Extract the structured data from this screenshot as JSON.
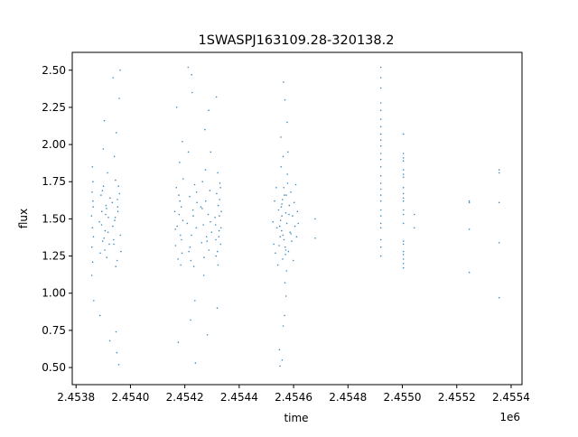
{
  "chart_data": {
    "type": "scatter",
    "title": "1SWASPJ163109.28-320138.2",
    "xlabel": "time",
    "ylabel": "flux",
    "x_offset_label": "1e6",
    "xlim": [
      2453786,
      2455440
    ],
    "ylim": [
      0.385,
      2.62
    ],
    "xticks": [
      2453800,
      2454000,
      2454200,
      2454400,
      2454600,
      2454800,
      2455000,
      2455200,
      2455400
    ],
    "xtick_labels": [
      "2.4538",
      "2.4540",
      "2.4542",
      "2.4544",
      "2.4546",
      "2.4548",
      "2.4550",
      "2.4552",
      "2.4554"
    ],
    "yticks": [
      0.5,
      0.75,
      1.0,
      1.25,
      1.5,
      1.75,
      2.0,
      2.25,
      2.5
    ],
    "ytick_labels": [
      "0.50",
      "0.75",
      "1.00",
      "1.25",
      "1.50",
      "1.75",
      "2.00",
      "2.25",
      "2.50"
    ],
    "grid": false,
    "marker_color": "#1f77b4",
    "series": [
      {
        "x": [
          2453857,
          2453858,
          2453859,
          2453860,
          2453861,
          2453862,
          2453863,
          2453864,
          2453865,
          2453858,
          2453860,
          2453862,
          2453886,
          2453889,
          2453892,
          2453895,
          2453898,
          2453901,
          2453904,
          2453907,
          2453910,
          2453913,
          2453916,
          2453919,
          2453922,
          2453925,
          2453888,
          2453894,
          2453900,
          2453906,
          2453912,
          2453918,
          2453924,
          2453897,
          2453903,
          2453909,
          2453933,
          2453936,
          2453939,
          2453942,
          2453945,
          2453948,
          2453951,
          2453954,
          2453957,
          2453960,
          2453963,
          2453935,
          2453941,
          2453947,
          2453953,
          2453959,
          2453965,
          2453944,
          2453950,
          2453956,
          2453938,
          2453962,
          2453946,
          2453952
        ],
        "y": [
          1.52,
          1.31,
          1.68,
          1.44,
          1.21,
          1.75,
          1.58,
          1.38,
          0.95,
          1.12,
          1.85,
          1.62,
          1.48,
          1.27,
          1.66,
          1.55,
          1.35,
          1.72,
          2.16,
          1.42,
          1.59,
          1.24,
          1.81,
          1.51,
          1.33,
          1.64,
          0.85,
          1.46,
          1.97,
          1.29,
          1.57,
          1.41,
          0.68,
          1.69,
          1.37,
          1.53,
          1.61,
          2.45,
          1.33,
          1.49,
          1.76,
          2.08,
          1.22,
          1.55,
          0.52,
          1.67,
          1.39,
          1.45,
          1.92,
          0.74,
          1.58,
          2.31,
          1.28,
          1.51,
          0.6,
          1.72,
          1.36,
          2.5,
          1.18,
          1.63
        ]
      },
      {
        "x": [
          2454163,
          2454166,
          2454169,
          2454172,
          2454175,
          2454178,
          2454181,
          2454184,
          2454187,
          2454190,
          2454193,
          2454170,
          2454176,
          2454182,
          2454188,
          2454194,
          2454165,
          2454185,
          2454179,
          2454191,
          2454209,
          2454212,
          2454215,
          2454218,
          2454221,
          2454224,
          2454227,
          2454230,
          2454233,
          2454236,
          2454239,
          2454242,
          2454245,
          2454213,
          2454219,
          2454225,
          2454231,
          2454237,
          2454243,
          2454222,
          2454259,
          2454262,
          2454265,
          2454268,
          2454271,
          2454274,
          2454277,
          2454280,
          2454283,
          2454286,
          2454289,
          2454292,
          2454295,
          2454298,
          2454264,
          2454270,
          2454276,
          2454282,
          2454288,
          2454294,
          2454311,
          2454314,
          2454317,
          2454320,
          2454323,
          2454326,
          2454329,
          2454332,
          2454334,
          2454316,
          2454322,
          2454328,
          2454313,
          2454319,
          2454325,
          2454331,
          2454315,
          2454327,
          2454321,
          2454333
        ],
        "y": [
          1.55,
          1.32,
          1.71,
          1.45,
          1.23,
          1.66,
          1.88,
          1.39,
          1.58,
          1.27,
          1.49,
          2.25,
          0.67,
          1.62,
          1.36,
          1.77,
          1.43,
          1.19,
          1.53,
          2.02,
          1.47,
          2.52,
          1.28,
          1.65,
          0.82,
          1.39,
          2.35,
          1.56,
          1.18,
          1.73,
          0.53,
          1.44,
          1.61,
          1.95,
          1.31,
          2.47,
          1.52,
          0.95,
          1.68,
          1.22,
          1.58,
          1.34,
          1.75,
          1.46,
          1.24,
          2.1,
          1.62,
          1.38,
          0.72,
          1.53,
          1.29,
          1.69,
          1.95,
          1.41,
          1.57,
          1.12,
          1.83,
          1.35,
          2.23,
          1.48,
          1.51,
          1.36,
          1.67,
          1.28,
          1.59,
          1.42,
          1.74,
          1.33,
          1.55,
          2.32,
          1.19,
          1.63,
          1.46,
          0.9,
          1.38,
          1.71,
          1.25,
          1.52,
          1.81,
          1.44
        ]
      },
      {
        "x": [
          2454524,
          2454527,
          2454530,
          2454533,
          2454536,
          2454539,
          2454542,
          2454545,
          2454548,
          2454551,
          2454554,
          2454557,
          2454560,
          2454563,
          2454566,
          2454569,
          2454572,
          2454575,
          2454578,
          2454581,
          2454584,
          2454587,
          2454590,
          2454593,
          2454596,
          2454599,
          2454602,
          2454605,
          2454608,
          2454611,
          2454614,
          2454617,
          2454550,
          2454553,
          2454556,
          2454559,
          2454562,
          2454565,
          2454568,
          2454571,
          2454574,
          2454577,
          2454552,
          2454558,
          2454564,
          2454570,
          2454576,
          2454555,
          2454561,
          2454567,
          2454573,
          2454549,
          2454579,
          2454547,
          2454583,
          2454590,
          2454562,
          2454568,
          2454557,
          2454571
        ],
        "y": [
          1.48,
          1.33,
          1.62,
          1.27,
          1.71,
          1.44,
          1.19,
          1.56,
          0.62,
          1.38,
          1.85,
          1.52,
          1.23,
          2.42,
          1.66,
          1.31,
          0.98,
          1.47,
          1.74,
          1.28,
          1.59,
          1.41,
          1.68,
          1.35,
          1.52,
          1.22,
          1.61,
          1.45,
          1.73,
          1.38,
          1.55,
          1.47,
          0.51,
          2.05,
          1.42,
          1.63,
          0.78,
          1.36,
          2.3,
          1.54,
          1.15,
          1.8,
          1.49,
          0.55,
          1.71,
          1.26,
          2.15,
          1.58,
          1.39,
          0.85,
          1.66,
          1.45,
          1.95,
          1.32,
          1.53,
          1.4,
          1.92,
          1.07,
          1.6,
          1.29
        ]
      },
      {
        "x": [
          2454679,
          2454679,
          2454921,
          2454921,
          2454921,
          2454921,
          2454921,
          2454921,
          2454921,
          2454921,
          2454921,
          2454921,
          2454921,
          2454921,
          2454921,
          2454921,
          2454921,
          2454921,
          2454921,
          2454921,
          2454921,
          2454921,
          2454921,
          2454921,
          2454921,
          2454921,
          2454921,
          2455004,
          2455004,
          2455004,
          2455004,
          2455004,
          2455004,
          2455004,
          2455004,
          2455004,
          2455004,
          2455004,
          2455004,
          2455004,
          2455004,
          2455004,
          2455004,
          2455004,
          2455004,
          2455004,
          2455004,
          2455004,
          2455044,
          2455044,
          2455246,
          2455246,
          2455246,
          2455246,
          2455356,
          2455356,
          2455356,
          2455356,
          2455356
        ],
        "y": [
          1.5,
          1.37,
          2.52,
          2.45,
          2.38,
          2.28,
          2.23,
          2.17,
          2.12,
          2.07,
          2.03,
          1.99,
          1.94,
          1.9,
          1.85,
          1.79,
          1.74,
          1.7,
          1.66,
          1.62,
          1.56,
          1.52,
          1.47,
          1.44,
          1.36,
          1.31,
          1.25,
          2.07,
          1.94,
          1.91,
          1.89,
          1.83,
          1.8,
          1.78,
          1.71,
          1.67,
          1.64,
          1.62,
          1.56,
          1.53,
          1.47,
          1.35,
          1.33,
          1.28,
          1.26,
          1.23,
          1.2,
          1.17,
          1.53,
          1.44,
          1.62,
          1.61,
          1.43,
          1.14,
          1.83,
          1.81,
          1.61,
          1.34,
          0.97
        ]
      }
    ]
  }
}
